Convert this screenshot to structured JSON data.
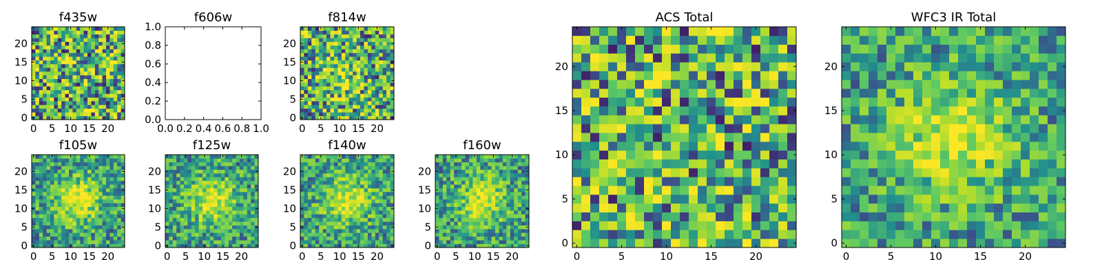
{
  "figure": {
    "background": "#ffffff",
    "colormap": [
      "#440154",
      "#3b528b",
      "#21908d",
      "#5dc963",
      "#b5de2b",
      "#fde725"
    ]
  },
  "chart_data": [
    {
      "type": "heatmap",
      "title": "f435w",
      "size": 25,
      "xticks": [
        0,
        5,
        10,
        15,
        20
      ],
      "yticks": [
        0,
        5,
        10,
        15,
        20
      ],
      "xlim": [
        -0.5,
        24.5
      ],
      "ylim": [
        -0.5,
        24.5
      ],
      "pattern": "noise",
      "value_range": [
        0,
        1
      ]
    },
    {
      "type": "heatmap",
      "title": "f606w",
      "empty": true,
      "xticks": [
        "0.0",
        "0.2",
        "0.4",
        "0.6",
        "0.8",
        "1.0"
      ],
      "yticks": [
        "0.0",
        "0.2",
        "0.4",
        "0.6",
        "0.8",
        "1.0"
      ],
      "xlim": [
        0,
        1
      ],
      "ylim": [
        0,
        1
      ]
    },
    {
      "type": "heatmap",
      "title": "f814w",
      "size": 25,
      "xticks": [
        0,
        5,
        10,
        15,
        20
      ],
      "yticks": [
        0,
        5,
        10,
        15,
        20
      ],
      "xlim": [
        -0.5,
        24.5
      ],
      "ylim": [
        -0.5,
        24.5
      ],
      "pattern": "noise-faint-source",
      "value_range": [
        0,
        1
      ]
    },
    {
      "type": "heatmap",
      "title": "f105w",
      "size": 25,
      "xticks": [
        0,
        5,
        10,
        15,
        20
      ],
      "yticks": [
        0,
        5,
        10,
        15,
        20
      ],
      "xlim": [
        -0.5,
        24.5
      ],
      "ylim": [
        -0.5,
        24.5
      ],
      "pattern": "central-source",
      "value_range": [
        0,
        1
      ]
    },
    {
      "type": "heatmap",
      "title": "f125w",
      "size": 25,
      "xticks": [
        0,
        5,
        10,
        15,
        20
      ],
      "yticks": [
        0,
        5,
        10,
        15,
        20
      ],
      "xlim": [
        -0.5,
        24.5
      ],
      "ylim": [
        -0.5,
        24.5
      ],
      "pattern": "central-source",
      "value_range": [
        0,
        1
      ]
    },
    {
      "type": "heatmap",
      "title": "f140w",
      "size": 25,
      "xticks": [
        0,
        5,
        10,
        15,
        20
      ],
      "yticks": [
        0,
        5,
        10,
        15,
        20
      ],
      "xlim": [
        -0.5,
        24.5
      ],
      "ylim": [
        -0.5,
        24.5
      ],
      "pattern": "central-source",
      "value_range": [
        0,
        1
      ]
    },
    {
      "type": "heatmap",
      "title": "f160w",
      "size": 25,
      "xticks": [
        0,
        5,
        10,
        15,
        20
      ],
      "yticks": [
        0,
        5,
        10,
        15,
        20
      ],
      "xlim": [
        -0.5,
        24.5
      ],
      "ylim": [
        -0.5,
        24.5
      ],
      "pattern": "central-source",
      "value_range": [
        0,
        1
      ]
    },
    {
      "type": "heatmap",
      "title": "ACS Total",
      "size": 25,
      "xticks": [
        0,
        5,
        10,
        15,
        20
      ],
      "yticks": [
        0,
        5,
        10,
        15,
        20
      ],
      "xlim": [
        -0.5,
        24.5
      ],
      "ylim": [
        -0.5,
        24.5
      ],
      "pattern": "noise",
      "value_range": [
        0,
        1
      ]
    },
    {
      "type": "heatmap",
      "title": "WFC3 IR Total",
      "size": 25,
      "xticks": [
        0,
        5,
        10,
        15,
        20
      ],
      "yticks": [
        0,
        5,
        10,
        15,
        20
      ],
      "xlim": [
        -0.5,
        24.5
      ],
      "ylim": [
        -0.5,
        24.5
      ],
      "pattern": "central-source",
      "value_range": [
        0,
        1
      ]
    }
  ]
}
